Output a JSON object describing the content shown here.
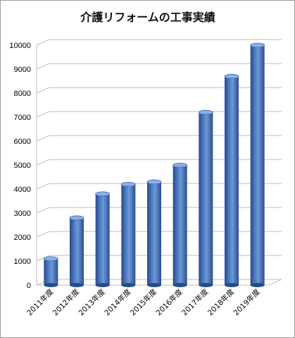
{
  "chart_data": {
    "type": "bar",
    "title": "介護リフォームの工事実績",
    "xlabel": "",
    "ylabel": "",
    "ylim": [
      0,
      10000
    ],
    "y_ticks": [
      0,
      1000,
      2000,
      3000,
      4000,
      5000,
      6000,
      7000,
      8000,
      9000,
      10000
    ],
    "categories": [
      "2011年度",
      "2012年度",
      "2013年度",
      "2014年度",
      "2015年度",
      "2016年度",
      "2017年度",
      "2018年度",
      "2019年度"
    ],
    "values": [
      1100,
      2800,
      3800,
      4200,
      4300,
      5000,
      7200,
      8700,
      10000
    ],
    "grid": true,
    "legend": "none",
    "bar_style": "3d-cylinder",
    "colors": {
      "bar": "#3f6fb8",
      "bar_dark": "#274b87",
      "bar_light": "#8fb0e3",
      "grid": "#bdbdbd"
    }
  }
}
